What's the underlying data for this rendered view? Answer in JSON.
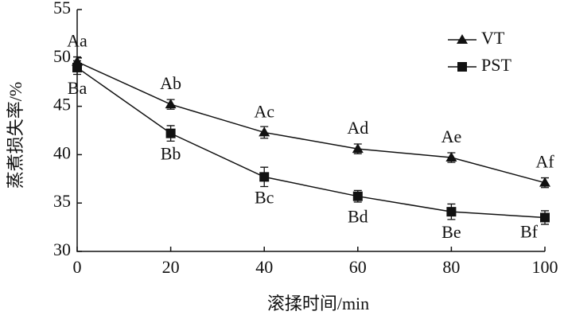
{
  "chart_data": {
    "type": "line",
    "x_label": "滚揉时间/min",
    "y_label": "蒸煮损失率/%",
    "x": [
      0,
      20,
      40,
      60,
      80,
      100
    ],
    "series": [
      {
        "name": "VT",
        "color": "#111111",
        "marker": "triangle",
        "values": [
          49.6,
          45.2,
          42.3,
          40.6,
          39.7,
          37.1
        ],
        "errors": [
          0.5,
          0.5,
          0.6,
          0.5,
          0.5,
          0.5
        ],
        "labels": [
          "Aa",
          "Ab",
          "Ac",
          "Ad",
          "Ae",
          "Af"
        ]
      },
      {
        "name": "PST",
        "color": "#111111",
        "marker": "square",
        "values": [
          49.0,
          42.2,
          37.7,
          35.7,
          34.1,
          33.5
        ],
        "errors": [
          0.7,
          0.8,
          1.0,
          0.6,
          0.8,
          0.7
        ],
        "labels": [
          "Ba",
          "Bb",
          "Bc",
          "Bd",
          "Be",
          "Bf"
        ]
      }
    ],
    "xlim": [
      0,
      100
    ],
    "xticks": [
      0,
      20,
      40,
      60,
      80,
      100
    ],
    "ylim": [
      30,
      55
    ],
    "yticks": [
      30,
      35,
      40,
      45,
      50,
      55
    ],
    "legend": "upper right"
  }
}
